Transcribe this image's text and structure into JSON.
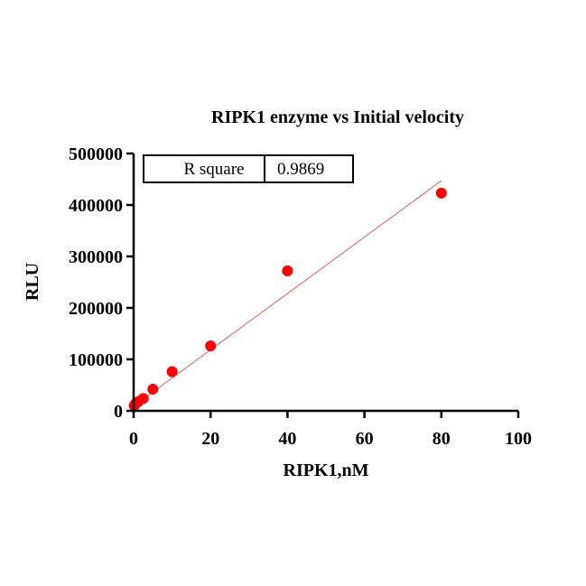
{
  "chart_data": {
    "type": "scatter",
    "title": "RIPK1 enzyme vs Initial velocity",
    "xlabel": "RIPK1,nM",
    "ylabel": "RLU",
    "xlim": [
      0,
      100
    ],
    "ylim": [
      0,
      500000
    ],
    "x_ticks": [
      0,
      20,
      40,
      60,
      80,
      100
    ],
    "y_ticks": [
      0,
      100000,
      200000,
      300000,
      400000,
      500000
    ],
    "x_tick_labels": [
      "0",
      "20",
      "40",
      "60",
      "80",
      "100"
    ],
    "y_tick_labels": [
      "0",
      "100000",
      "200000",
      "300000",
      "400000",
      "500000"
    ],
    "grid": false,
    "points": [
      {
        "x": 0.156,
        "y": 10000
      },
      {
        "x": 0.3125,
        "y": 12000
      },
      {
        "x": 0.625,
        "y": 15000
      },
      {
        "x": 1.25,
        "y": 18000
      },
      {
        "x": 2.5,
        "y": 24000
      },
      {
        "x": 5,
        "y": 42000
      },
      {
        "x": 10,
        "y": 76000
      },
      {
        "x": 20,
        "y": 126000
      },
      {
        "x": 40,
        "y": 272000
      },
      {
        "x": 80,
        "y": 423000
      }
    ],
    "fit_line": {
      "x_start": 0,
      "y_start": 9000,
      "x_end": 80,
      "y_end": 447000
    },
    "point_color": "#ff0000",
    "line_color": "#e06060",
    "stats_table": {
      "label": "R square",
      "value": "0.9869"
    }
  }
}
